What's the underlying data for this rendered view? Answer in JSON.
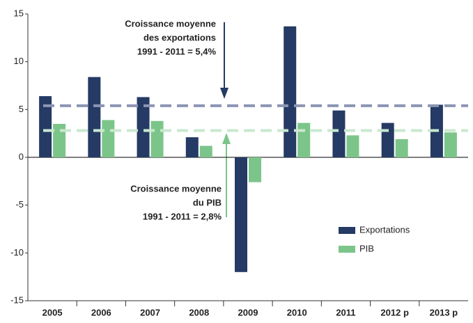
{
  "chart_data": {
    "type": "bar",
    "categories": [
      "2005",
      "2006",
      "2007",
      "2008",
      "2009",
      "2010",
      "2011",
      "2012 p",
      "2013 p"
    ],
    "series": [
      {
        "name": "Exportations",
        "color": "#253a64",
        "values": [
          6.4,
          8.4,
          6.3,
          2.1,
          -12.0,
          13.7,
          4.9,
          3.6,
          5.5
        ]
      },
      {
        "name": "PIB",
        "color": "#7cc58a",
        "values": [
          3.5,
          3.9,
          3.8,
          1.2,
          -2.6,
          3.6,
          2.3,
          1.9,
          2.6
        ]
      }
    ],
    "ylim": [
      -15,
      15
    ],
    "yticks": [
      -15,
      -10,
      -5,
      0,
      5,
      10,
      15
    ],
    "reference_lines": [
      {
        "value": 5.4,
        "color": "#8c95b3"
      },
      {
        "value": 2.8,
        "color": "#c9e8cf"
      }
    ],
    "annotations": [
      {
        "lines": [
          "Croissance moyenne",
          "des exportations",
          "1991 - 2011 = 5,4%"
        ],
        "color": "#253a64"
      },
      {
        "lines": [
          "Croissance moyenne",
          "du PIB",
          "1991 - 2011 = 2,8%"
        ],
        "color": "#222222"
      }
    ],
    "legend": "bottom right"
  }
}
